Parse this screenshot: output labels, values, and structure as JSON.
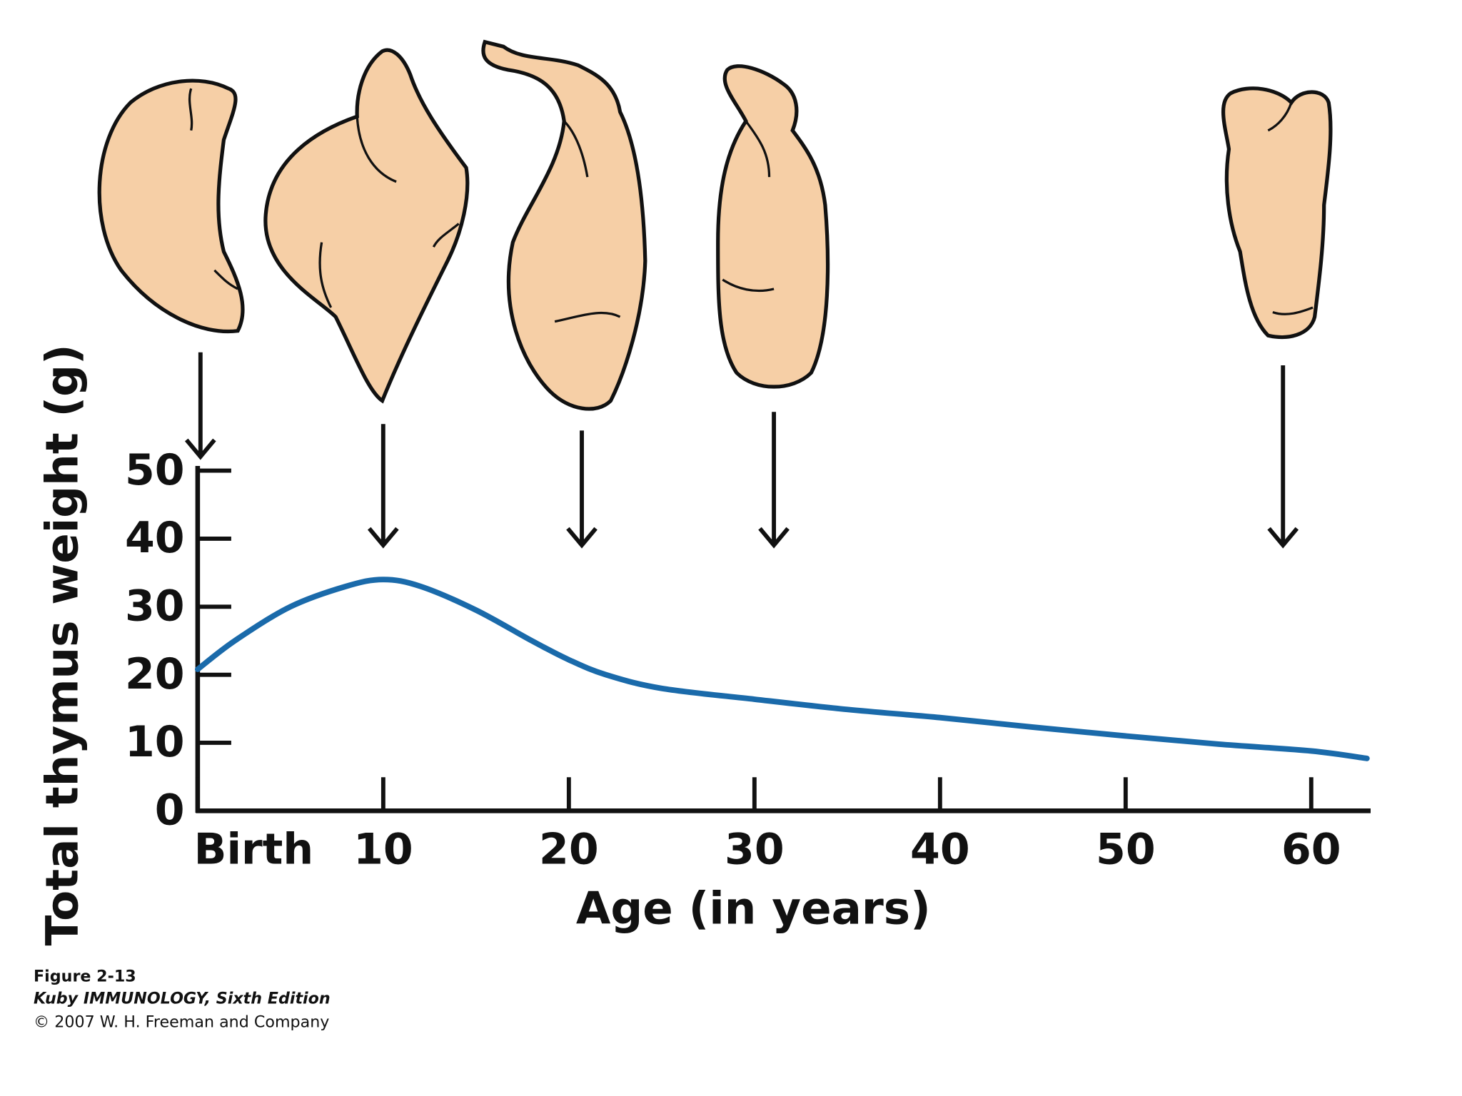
{
  "chart_data": {
    "type": "line",
    "x": [
      0,
      2,
      5,
      8,
      10,
      12,
      15,
      18,
      20,
      22,
      25,
      30,
      35,
      40,
      45,
      50,
      55,
      60,
      63
    ],
    "series": [
      {
        "color": "#1a6aaa",
        "values": [
          20.8,
          25,
          30,
          33,
          34,
          33,
          29.5,
          25,
          22.2,
          20,
          18,
          16.4,
          14.9,
          13.7,
          12.3,
          11,
          9.8,
          8.8,
          7.7
        ]
      }
    ],
    "xlim": [
      0,
      63.2
    ],
    "ylim": [
      0,
      50
    ],
    "xticks": [
      {
        "value": 0,
        "label": "Birth"
      },
      10,
      20,
      30,
      40,
      50,
      60
    ],
    "yticks": [
      0,
      10,
      20,
      30,
      40,
      50
    ],
    "xlabel": "Age (in years)",
    "ylabel": "Total thymus weight (g)",
    "annotations": [
      "Figure 2-13",
      "Kuby IMMUNOLOGY, Sixth Edition",
      "© 2007 W. H. Freeman and Company"
    ]
  }
}
